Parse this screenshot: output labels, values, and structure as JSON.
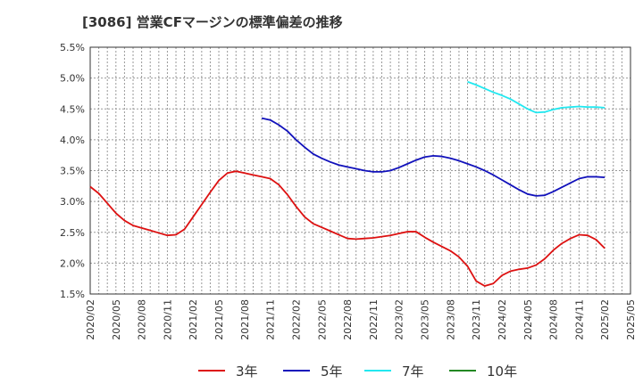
{
  "chart_data": {
    "type": "line",
    "title": "[3086]  営業CFマージンの標準偏差の推移",
    "xlabel": "",
    "ylabel": "",
    "ylim": [
      1.5,
      5.5
    ],
    "yticks": [
      "1.5%",
      "2.0%",
      "2.5%",
      "3.0%",
      "3.5%",
      "4.0%",
      "4.5%",
      "5.0%",
      "5.5%"
    ],
    "ytick_values": [
      1.5,
      2.0,
      2.5,
      3.0,
      3.5,
      4.0,
      4.5,
      5.0,
      5.5
    ],
    "xticks": [
      "2020/02",
      "2020/05",
      "2020/08",
      "2020/11",
      "2021/02",
      "2021/05",
      "2021/08",
      "2021/11",
      "2022/02",
      "2022/05",
      "2022/08",
      "2022/11",
      "2023/02",
      "2023/05",
      "2023/08",
      "2023/11",
      "2024/02",
      "2024/05",
      "2024/08",
      "2024/11",
      "2025/02",
      "2025/05"
    ],
    "x_start": "2020/02",
    "grid": true,
    "legend_position": "bottom",
    "series": [
      {
        "name": "3年",
        "color": "#dd1111",
        "points": [
          [
            "2020/02",
            3.24
          ],
          [
            "2020/03",
            3.13
          ],
          [
            "2020/04",
            2.97
          ],
          [
            "2020/05",
            2.81
          ],
          [
            "2020/06",
            2.69
          ],
          [
            "2020/07",
            2.61
          ],
          [
            "2020/08",
            2.57
          ],
          [
            "2020/09",
            2.53
          ],
          [
            "2020/10",
            2.49
          ],
          [
            "2020/11",
            2.45
          ],
          [
            "2020/12",
            2.46
          ],
          [
            "2021/01",
            2.55
          ],
          [
            "2021/02",
            2.75
          ],
          [
            "2021/03",
            2.95
          ],
          [
            "2021/04",
            3.15
          ],
          [
            "2021/05",
            3.34
          ],
          [
            "2021/06",
            3.46
          ],
          [
            "2021/07",
            3.49
          ],
          [
            "2021/08",
            3.46
          ],
          [
            "2021/09",
            3.43
          ],
          [
            "2021/10",
            3.4
          ],
          [
            "2021/11",
            3.37
          ],
          [
            "2021/12",
            3.27
          ],
          [
            "2022/01",
            3.11
          ],
          [
            "2022/02",
            2.92
          ],
          [
            "2022/03",
            2.75
          ],
          [
            "2022/04",
            2.64
          ],
          [
            "2022/05",
            2.58
          ],
          [
            "2022/06",
            2.52
          ],
          [
            "2022/07",
            2.46
          ],
          [
            "2022/08",
            2.4
          ],
          [
            "2022/09",
            2.39
          ],
          [
            "2022/10",
            2.4
          ],
          [
            "2022/11",
            2.41
          ],
          [
            "2022/12",
            2.43
          ],
          [
            "2023/01",
            2.45
          ],
          [
            "2023/02",
            2.48
          ],
          [
            "2023/03",
            2.51
          ],
          [
            "2023/04",
            2.51
          ],
          [
            "2023/05",
            2.42
          ],
          [
            "2023/06",
            2.34
          ],
          [
            "2023/07",
            2.27
          ],
          [
            "2023/08",
            2.2
          ],
          [
            "2023/09",
            2.1
          ],
          [
            "2023/10",
            1.95
          ],
          [
            "2023/11",
            1.71
          ],
          [
            "2023/12",
            1.63
          ],
          [
            "2024/01",
            1.67
          ],
          [
            "2024/02",
            1.8
          ],
          [
            "2024/03",
            1.87
          ],
          [
            "2024/04",
            1.9
          ],
          [
            "2024/05",
            1.92
          ],
          [
            "2024/06",
            1.97
          ],
          [
            "2024/07",
            2.07
          ],
          [
            "2024/08",
            2.21
          ],
          [
            "2024/09",
            2.32
          ],
          [
            "2024/10",
            2.4
          ],
          [
            "2024/11",
            2.46
          ],
          [
            "2024/12",
            2.45
          ],
          [
            "2025/01",
            2.38
          ],
          [
            "2025/02",
            2.24
          ]
        ]
      },
      {
        "name": "5年",
        "color": "#1111bb",
        "points": [
          [
            "2021/10",
            4.35
          ],
          [
            "2021/11",
            4.32
          ],
          [
            "2021/12",
            4.24
          ],
          [
            "2022/01",
            4.14
          ],
          [
            "2022/02",
            4.0
          ],
          [
            "2022/03",
            3.88
          ],
          [
            "2022/04",
            3.77
          ],
          [
            "2022/05",
            3.7
          ],
          [
            "2022/06",
            3.64
          ],
          [
            "2022/07",
            3.59
          ],
          [
            "2022/08",
            3.56
          ],
          [
            "2022/09",
            3.53
          ],
          [
            "2022/10",
            3.5
          ],
          [
            "2022/11",
            3.48
          ],
          [
            "2022/12",
            3.48
          ],
          [
            "2023/01",
            3.5
          ],
          [
            "2023/02",
            3.55
          ],
          [
            "2023/03",
            3.61
          ],
          [
            "2023/04",
            3.67
          ],
          [
            "2023/05",
            3.72
          ],
          [
            "2023/06",
            3.74
          ],
          [
            "2023/07",
            3.73
          ],
          [
            "2023/08",
            3.7
          ],
          [
            "2023/09",
            3.66
          ],
          [
            "2023/10",
            3.61
          ],
          [
            "2023/11",
            3.56
          ],
          [
            "2023/12",
            3.5
          ],
          [
            "2024/01",
            3.43
          ],
          [
            "2024/02",
            3.35
          ],
          [
            "2024/03",
            3.27
          ],
          [
            "2024/04",
            3.19
          ],
          [
            "2024/05",
            3.12
          ],
          [
            "2024/06",
            3.09
          ],
          [
            "2024/07",
            3.1
          ],
          [
            "2024/08",
            3.16
          ],
          [
            "2024/09",
            3.23
          ],
          [
            "2024/10",
            3.3
          ],
          [
            "2024/11",
            3.37
          ],
          [
            "2024/12",
            3.4
          ],
          [
            "2025/01",
            3.4
          ],
          [
            "2025/02",
            3.39
          ]
        ]
      },
      {
        "name": "7年",
        "color": "#22e8f0",
        "points": [
          [
            "2023/10",
            4.94
          ],
          [
            "2023/11",
            4.89
          ],
          [
            "2023/12",
            4.83
          ],
          [
            "2024/01",
            4.77
          ],
          [
            "2024/02",
            4.72
          ],
          [
            "2024/03",
            4.66
          ],
          [
            "2024/04",
            4.58
          ],
          [
            "2024/05",
            4.5
          ],
          [
            "2024/06",
            4.44
          ],
          [
            "2024/07",
            4.45
          ],
          [
            "2024/08",
            4.49
          ],
          [
            "2024/09",
            4.52
          ],
          [
            "2024/10",
            4.53
          ],
          [
            "2024/11",
            4.54
          ],
          [
            "2024/12",
            4.53
          ],
          [
            "2025/01",
            4.53
          ],
          [
            "2025/02",
            4.52
          ]
        ]
      },
      {
        "name": "10年",
        "color": "#228822",
        "points": []
      }
    ]
  }
}
